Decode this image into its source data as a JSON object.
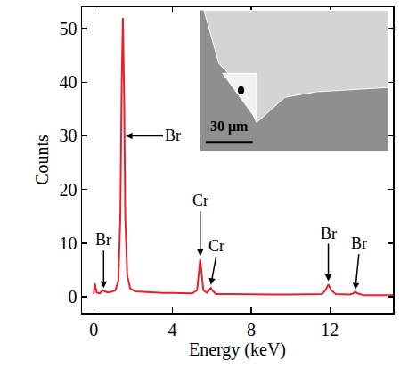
{
  "chart_data": {
    "type": "line",
    "xlabel": "Energy (keV)",
    "ylabel": "Counts",
    "color": "#e8202a",
    "xlim": [
      -0.6,
      15.2
    ],
    "ylim": [
      -3,
      54
    ],
    "xticks": [
      0,
      4,
      8,
      12
    ],
    "yticks": [
      0,
      10,
      20,
      30,
      40,
      50
    ],
    "grid": false,
    "x": [
      0,
      0.05,
      0.15,
      0.3,
      0.45,
      0.55,
      0.7,
      0.9,
      1.1,
      1.25,
      1.35,
      1.42,
      1.48,
      1.54,
      1.6,
      1.7,
      1.85,
      2.1,
      2.5,
      3,
      3.5,
      4,
      4.5,
      5.0,
      5.25,
      5.33,
      5.41,
      5.49,
      5.57,
      5.75,
      5.88,
      5.95,
      6.02,
      6.2,
      7,
      8,
      9,
      10,
      11,
      11.6,
      11.78,
      11.92,
      12.06,
      12.3,
      13.0,
      13.18,
      13.29,
      13.4,
      13.7,
      14.5,
      15.2
    ],
    "values": [
      0.5,
      2.5,
      0.8,
      0.6,
      1.2,
      1.0,
      0.8,
      0.9,
      1.2,
      3,
      15,
      40,
      52,
      38,
      15,
      4,
      1.5,
      1.0,
      0.9,
      0.8,
      0.7,
      0.7,
      0.6,
      0.6,
      1.2,
      4,
      7,
      4,
      1.2,
      0.7,
      1.2,
      1.6,
      1.2,
      0.5,
      0.5,
      0.4,
      0.4,
      0.4,
      0.4,
      0.5,
      1.2,
      2.3,
      1.2,
      0.5,
      0.4,
      0.6,
      0.9,
      0.6,
      0.3,
      0.3,
      0.3
    ],
    "annotations": [
      {
        "text": "Br",
        "x": 1.62,
        "y": 30
      },
      {
        "text": "Br",
        "x": 0.5,
        "y": 1.6
      },
      {
        "text": "Cr",
        "x": 5.41,
        "y": 7.6
      },
      {
        "text": "Cr",
        "x": 5.95,
        "y": 2.2
      },
      {
        "text": "Br",
        "x": 11.92,
        "y": 2.9
      },
      {
        "text": "Br",
        "x": 13.29,
        "y": 1.3
      }
    ],
    "scale_bar": "30 μm"
  }
}
